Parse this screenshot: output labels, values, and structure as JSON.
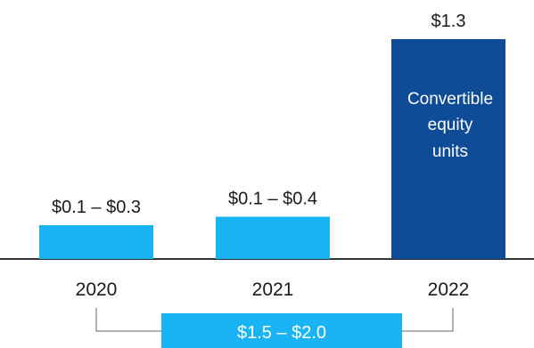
{
  "chart_data": {
    "type": "bar",
    "title": "",
    "xlabel": "",
    "ylabel": "",
    "categories": [
      "2020",
      "2021",
      "2022"
    ],
    "values": [
      0.2,
      0.25,
      1.3
    ],
    "ranges": [
      [
        0.1,
        0.3
      ],
      [
        0.1,
        0.4
      ],
      [
        1.3,
        1.3
      ]
    ],
    "data_labels": [
      "$0.1 – $0.3",
      "$0.1 – $0.4",
      "$1.3"
    ],
    "bar_colors": [
      "#1ab4f5",
      "#1ab4f5",
      "#0f4c97"
    ],
    "in_bar_annotation": {
      "category": "2022",
      "lines": [
        "Convertible",
        "equity",
        "units"
      ]
    },
    "total": {
      "label": "$1.5 – $2.0",
      "range": [
        1.5,
        2.0
      ],
      "spans": [
        "2020",
        "2022"
      ],
      "color": "#1ab4f5"
    },
    "ylim": [
      0,
      1.3
    ],
    "grid": false,
    "legend": "none",
    "axis_line_color": "#333333",
    "bracket_color": "#9a9a9a"
  }
}
